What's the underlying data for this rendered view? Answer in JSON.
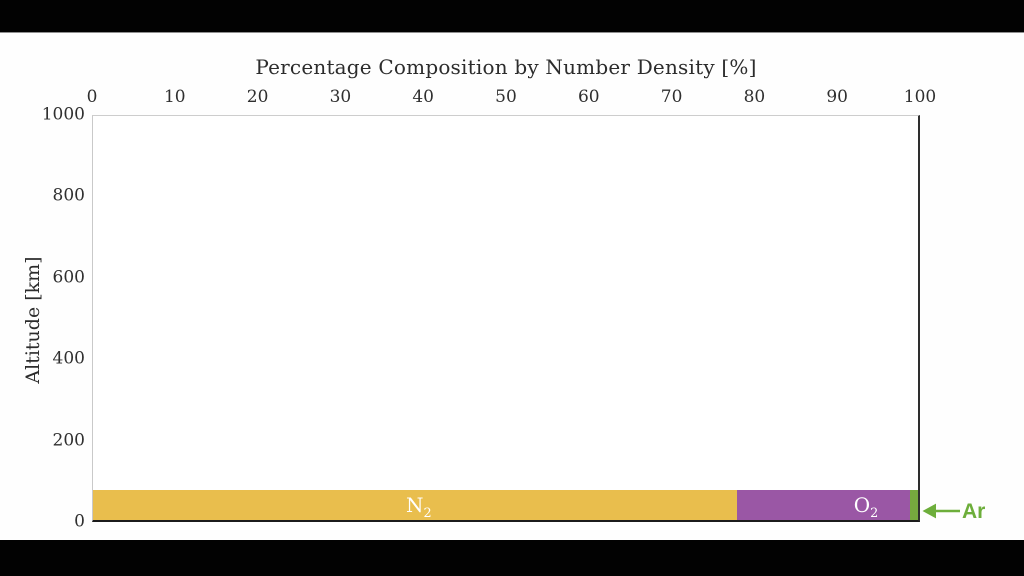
{
  "frame": {
    "background": "#000000",
    "canvas_background": "#FEFEFE"
  },
  "chart_data": {
    "type": "bar",
    "variant": "horizontal-stacked-composition",
    "title": "Percentage Composition by Number Density [%]",
    "xlabel": "Percentage Composition by Number Density [%]",
    "ylabel": "Altitude [km]",
    "x_axis_position": "top",
    "grid": false,
    "legend": false,
    "xlim": [
      0,
      100
    ],
    "ylim": [
      0,
      1000
    ],
    "x_ticks": [
      0,
      10,
      20,
      30,
      40,
      50,
      60,
      70,
      80,
      90,
      100
    ],
    "y_ticks": [
      0,
      200,
      400,
      600,
      800,
      1000
    ],
    "composition_pct": {
      "N2": 78,
      "O2": 21,
      "Ar": 1
    },
    "bar": {
      "altitude_span_km": [
        0,
        75
      ],
      "segments": [
        {
          "name": "N2",
          "label_main": "N",
          "label_sub": "2",
          "start_pct": 0,
          "end_pct": 78,
          "color": "#E9BE4D",
          "label_x_pct": 39.5,
          "label_color": "#FFFFFF"
        },
        {
          "name": "O2",
          "label_main": "O",
          "label_sub": "2",
          "start_pct": 78,
          "end_pct": 99,
          "color": "#9A57A5",
          "label_x_pct": 93.7,
          "label_color": "#FFFFFF"
        },
        {
          "name": "Ar",
          "start_pct": 99,
          "end_pct": 100,
          "color": "#76A93E"
        }
      ]
    },
    "annotation": {
      "label": "Ar",
      "color": "#6DAE3B",
      "arrow_direction": "left"
    }
  },
  "text_colors": {
    "title": "#2C2C2C",
    "ticks": "#2F2F2F"
  }
}
